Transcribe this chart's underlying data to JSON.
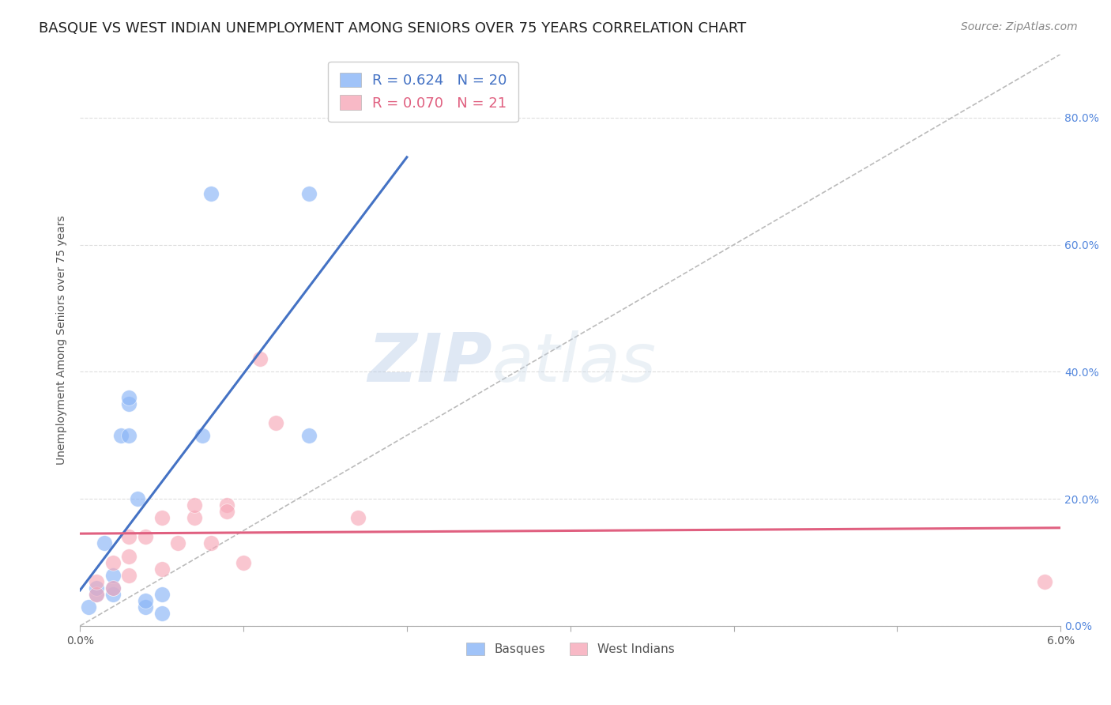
{
  "title": "BASQUE VS WEST INDIAN UNEMPLOYMENT AMONG SENIORS OVER 75 YEARS CORRELATION CHART",
  "source": "Source: ZipAtlas.com",
  "ylabel": "Unemployment Among Seniors over 75 years",
  "xlim": [
    0.0,
    0.06
  ],
  "ylim": [
    0.0,
    0.85
  ],
  "ytick_values": [
    0.0,
    0.2,
    0.4,
    0.6,
    0.8
  ],
  "ytick_labels_right": [
    "0.0%",
    "20.0%",
    "40.0%",
    "60.0%",
    "80.0%"
  ],
  "xtick_values": [
    0.0,
    0.01,
    0.02,
    0.03,
    0.04,
    0.05,
    0.06
  ],
  "xtick_show_labels": [
    true,
    false,
    false,
    false,
    false,
    false,
    true
  ],
  "xtick_label_left": "0.0%",
  "xtick_label_right": "6.0%",
  "basque_color": "#89b4f7",
  "west_indian_color": "#f7a8b8",
  "basque_line_color": "#4472c4",
  "west_indian_line_color": "#e06080",
  "diagonal_color": "#bbbbbb",
  "right_axis_color": "#5588dd",
  "R_basque": 0.624,
  "N_basque": 20,
  "R_west_indian": 0.07,
  "N_west_indian": 21,
  "basque_x": [
    0.0005,
    0.001,
    0.001,
    0.0015,
    0.002,
    0.002,
    0.002,
    0.0025,
    0.003,
    0.003,
    0.003,
    0.0035,
    0.004,
    0.004,
    0.005,
    0.005,
    0.0075,
    0.008,
    0.014,
    0.014
  ],
  "basque_y": [
    0.03,
    0.05,
    0.06,
    0.13,
    0.05,
    0.06,
    0.08,
    0.3,
    0.3,
    0.35,
    0.36,
    0.2,
    0.03,
    0.04,
    0.02,
    0.05,
    0.3,
    0.68,
    0.3,
    0.68
  ],
  "west_indian_x": [
    0.001,
    0.001,
    0.002,
    0.002,
    0.003,
    0.003,
    0.003,
    0.004,
    0.005,
    0.005,
    0.006,
    0.007,
    0.007,
    0.008,
    0.009,
    0.009,
    0.01,
    0.011,
    0.012,
    0.017,
    0.059
  ],
  "west_indian_y": [
    0.05,
    0.07,
    0.06,
    0.1,
    0.08,
    0.11,
    0.14,
    0.14,
    0.09,
    0.17,
    0.13,
    0.17,
    0.19,
    0.13,
    0.19,
    0.18,
    0.1,
    0.42,
    0.32,
    0.17,
    0.07
  ],
  "watermark_zip": "ZIP",
  "watermark_atlas": "atlas",
  "legend_basque": "Basques",
  "legend_west_indian": "West Indians",
  "title_fontsize": 13,
  "axis_label_fontsize": 10,
  "tick_fontsize": 10,
  "source_fontsize": 10,
  "marker_size": 200
}
